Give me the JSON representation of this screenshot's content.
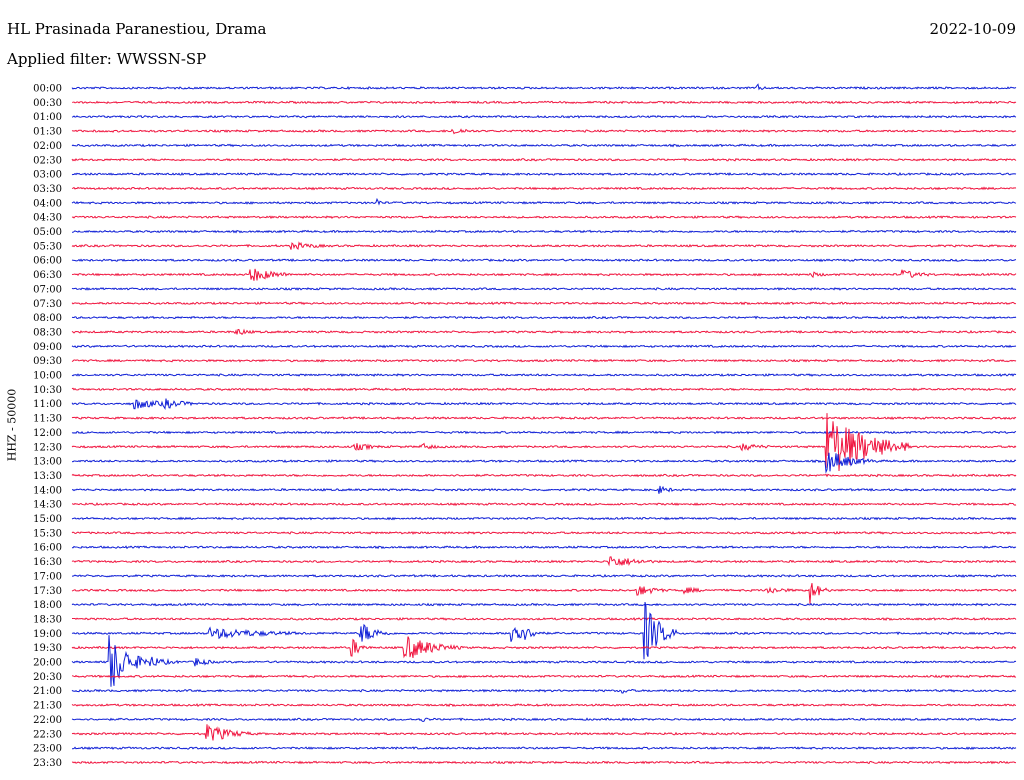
{
  "header": {
    "station": "HL Prasinada Paranestiou, Drama",
    "date": "2022-10-09",
    "filter": "Applied filter: WWSSN-SP"
  },
  "scale_label": "HHZ - 50000",
  "colors": {
    "blue": "#0f1fd6",
    "red": "#f0153f"
  },
  "chart_data": {
    "type": "line",
    "description_type": "helicorder",
    "row_labels": [
      "00:00",
      "00:30",
      "01:00",
      "01:30",
      "02:00",
      "02:30",
      "03:00",
      "03:30",
      "04:00",
      "04:30",
      "05:00",
      "05:30",
      "06:00",
      "06:30",
      "07:00",
      "07:30",
      "08:00",
      "08:30",
      "09:00",
      "09:30",
      "10:00",
      "10:30",
      "11:00",
      "11:30",
      "12:00",
      "12:30",
      "13:00",
      "13:30",
      "14:00",
      "14:30",
      "15:00",
      "15:30",
      "16:00",
      "16:30",
      "17:00",
      "17:30",
      "18:00",
      "18:30",
      "19:00",
      "19:30",
      "20:00",
      "20:30",
      "21:00",
      "21:30",
      "22:00",
      "22:30",
      "23:00",
      "23:30"
    ],
    "row_colors": [
      "blue",
      "red"
    ],
    "minutes_per_row": 30,
    "events": [
      {
        "row": 0,
        "minute": 21.8,
        "amp": 4,
        "dur": 0.4
      },
      {
        "row": 3,
        "minute": 12.1,
        "amp": 4,
        "dur": 1.2
      },
      {
        "row": 8,
        "minute": 9.7,
        "amp": 5,
        "dur": 0.3
      },
      {
        "row": 11,
        "minute": 7.0,
        "amp": 4,
        "dur": 1.8
      },
      {
        "row": 13,
        "minute": 5.7,
        "amp": 8,
        "dur": 1.6
      },
      {
        "row": 13,
        "minute": 23.5,
        "amp": 3,
        "dur": 1.0
      },
      {
        "row": 13,
        "minute": 26.4,
        "amp": 5,
        "dur": 1.4
      },
      {
        "row": 17,
        "minute": 5.2,
        "amp": 4,
        "dur": 1.0
      },
      {
        "row": 22,
        "minute": 2.0,
        "amp": 6,
        "dur": 1.8
      },
      {
        "row": 22,
        "minute": 2.9,
        "amp": 6,
        "dur": 1.4
      },
      {
        "row": 25,
        "minute": 9.0,
        "amp": 4,
        "dur": 1.4
      },
      {
        "row": 25,
        "minute": 11.1,
        "amp": 4,
        "dur": 1.0
      },
      {
        "row": 25,
        "minute": 21.3,
        "amp": 4,
        "dur": 1.6
      },
      {
        "row": 25,
        "minute": 24.0,
        "amp": 36,
        "dur": 2.6
      },
      {
        "row": 26,
        "minute": 24.0,
        "amp": 12,
        "dur": 1.6
      },
      {
        "row": 28,
        "minute": 18.7,
        "amp": 4,
        "dur": 0.8
      },
      {
        "row": 33,
        "minute": 17.1,
        "amp": 7,
        "dur": 1.8
      },
      {
        "row": 35,
        "minute": 18.0,
        "amp": 6,
        "dur": 1.2
      },
      {
        "row": 35,
        "minute": 19.4,
        "amp": 4,
        "dur": 1.2
      },
      {
        "row": 35,
        "minute": 22.1,
        "amp": 4,
        "dur": 1.4
      },
      {
        "row": 35,
        "minute": 23.5,
        "amp": 12,
        "dur": 0.6
      },
      {
        "row": 38,
        "minute": 9.2,
        "amp": 12,
        "dur": 1.0
      },
      {
        "row": 38,
        "minute": 14.0,
        "amp": 16,
        "dur": 1.0
      },
      {
        "row": 38,
        "minute": 18.2,
        "amp": 32,
        "dur": 1.0
      },
      {
        "row": 38,
        "minute": 4.4,
        "amp": 6,
        "dur": 4.0
      },
      {
        "row": 39,
        "minute": 10.6,
        "amp": 14,
        "dur": 1.8
      },
      {
        "row": 39,
        "minute": 8.9,
        "amp": 10,
        "dur": 0.6
      },
      {
        "row": 40,
        "minute": 1.2,
        "amp": 32,
        "dur": 1.2
      },
      {
        "row": 40,
        "minute": 2.5,
        "amp": 6,
        "dur": 1.2
      },
      {
        "row": 40,
        "minute": 3.9,
        "amp": 5,
        "dur": 1.0
      },
      {
        "row": 42,
        "minute": 17.5,
        "amp": 3,
        "dur": 0.8
      },
      {
        "row": 44,
        "minute": 11.1,
        "amp": 3,
        "dur": 0.6
      },
      {
        "row": 45,
        "minute": 4.3,
        "amp": 10,
        "dur": 1.6
      }
    ]
  }
}
